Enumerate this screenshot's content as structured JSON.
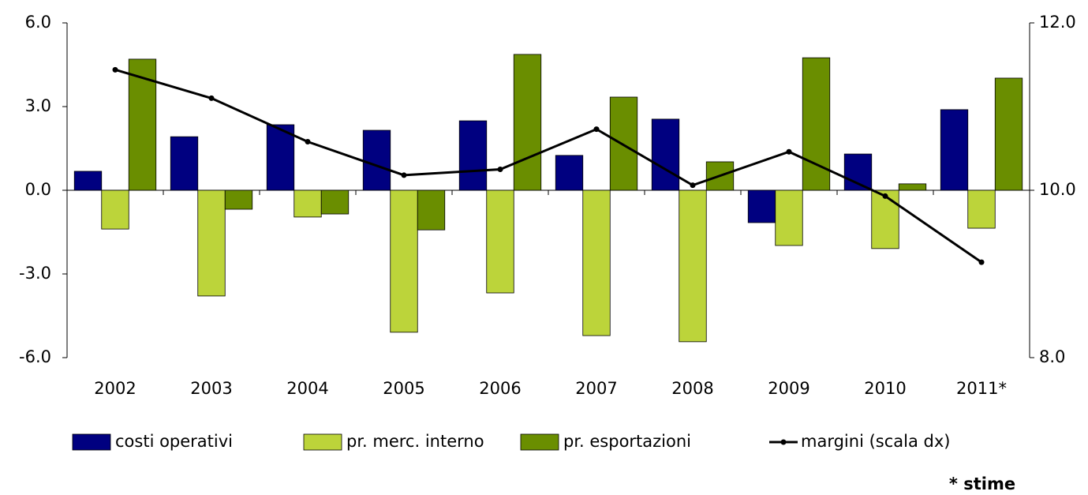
{
  "chart_data": {
    "type": "bar",
    "categories": [
      "2002",
      "2003",
      "2004",
      "2005",
      "2006",
      "2007",
      "2008",
      "2009",
      "2010",
      "2011*"
    ],
    "series": [
      {
        "name": "costi operativi",
        "color": "#000080",
        "values": [
          0.68,
          1.92,
          2.35,
          2.15,
          2.49,
          1.25,
          2.55,
          -1.16,
          1.3,
          2.89
        ]
      },
      {
        "name": "pr. merc. interno",
        "color": "#bcd43a",
        "values": [
          -1.39,
          -3.79,
          -0.96,
          -5.09,
          -3.68,
          -5.21,
          -5.43,
          -1.98,
          -2.09,
          -1.36
        ]
      },
      {
        "name": "pr. esportazioni",
        "color": "#6a8e00",
        "values": [
          4.7,
          -0.68,
          -0.85,
          -1.42,
          4.87,
          3.34,
          1.02,
          4.75,
          0.23,
          4.02
        ]
      },
      {
        "name": "margini (scala dx)",
        "color": "#000000",
        "type": "line",
        "axis": "y2",
        "values": [
          11.44,
          11.1,
          10.58,
          10.18,
          10.25,
          10.73,
          10.06,
          10.46,
          9.93,
          9.14
        ]
      }
    ],
    "ylim": [
      -6,
      6
    ],
    "yticks": [
      {
        "value": -6,
        "label": "-6.0"
      },
      {
        "value": -3,
        "label": "-3.0"
      },
      {
        "value": 0,
        "label": "0.0"
      },
      {
        "value": 3,
        "label": "3.0"
      },
      {
        "value": 6,
        "label": "6.0"
      }
    ],
    "y2lim": [
      8,
      12
    ],
    "y2ticks": [
      {
        "value": 8,
        "label": "8.0"
      },
      {
        "value": 10,
        "label": "10.0"
      },
      {
        "value": 12,
        "label": "12.0"
      }
    ],
    "legend": "bottom",
    "note": "* stime"
  }
}
